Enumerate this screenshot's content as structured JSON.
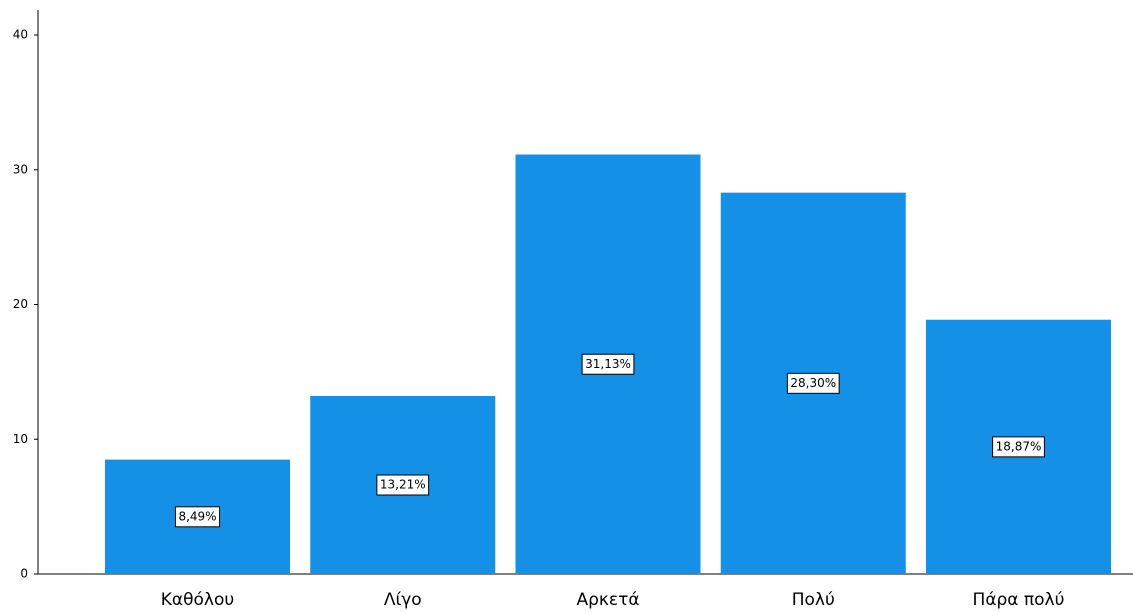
{
  "chart_data": {
    "type": "bar",
    "categories": [
      "Καθόλου",
      "Λίγο",
      "Αρκετά",
      "Πολύ",
      "Πάρα πολύ"
    ],
    "values": [
      8.49,
      13.21,
      31.13,
      28.3,
      18.87
    ],
    "value_labels": [
      "8,49%",
      "13,21%",
      "31,13%",
      "28,30%",
      "18,87%"
    ],
    "color": "#1490e6",
    "ylim": [
      0,
      40
    ],
    "yticks": [
      0,
      10,
      20,
      30,
      40
    ],
    "grid": false
  }
}
